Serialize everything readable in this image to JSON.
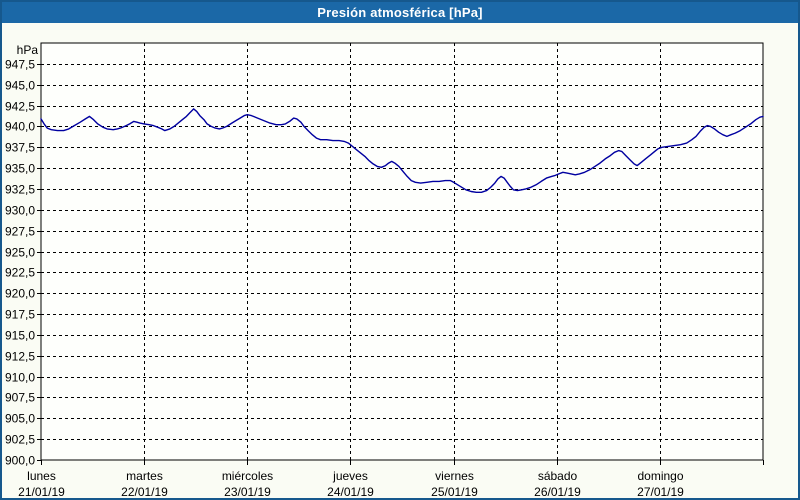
{
  "window": {
    "title": "Presión atmosférica [hPa]"
  },
  "chart_data": {
    "type": "line",
    "title": "Presión atmosférica [hPa]",
    "ylabel": "hPa",
    "xlabel": "",
    "y_min": 900,
    "y_max": 950,
    "y_tick_step": 2.5,
    "y_tick_labels": [
      "947,5",
      "945,0",
      "942,5",
      "940,0",
      "937,5",
      "935,0",
      "932,5",
      "930,0",
      "927,5",
      "925,0",
      "922,5",
      "920,0",
      "917,5",
      "915,0",
      "912,5",
      "910,0",
      "907,5",
      "905,0",
      "902,5",
      "900,0"
    ],
    "x_days": [
      {
        "name": "lunes",
        "date": "21/01/19"
      },
      {
        "name": "martes",
        "date": "22/01/19"
      },
      {
        "name": "miércoles",
        "date": "23/01/19"
      },
      {
        "name": "jueves",
        "date": "24/01/19"
      },
      {
        "name": "viernes",
        "date": "25/01/19"
      },
      {
        "name": "sábado",
        "date": "26/01/19"
      },
      {
        "name": "domingo",
        "date": "27/01/19"
      }
    ],
    "x_min_day": 0,
    "x_max_day": 7,
    "grid": "dashed",
    "legend": "none",
    "series": [
      {
        "name": "Presión atmosférica",
        "units": "hPa",
        "points": [
          [
            0.0,
            940.9
          ],
          [
            0.03,
            940.3
          ],
          [
            0.06,
            939.8
          ],
          [
            0.1,
            939.6
          ],
          [
            0.16,
            939.5
          ],
          [
            0.22,
            939.5
          ],
          [
            0.27,
            939.7
          ],
          [
            0.31,
            940.0
          ],
          [
            0.38,
            940.5
          ],
          [
            0.43,
            940.9
          ],
          [
            0.47,
            941.2
          ],
          [
            0.51,
            940.8
          ],
          [
            0.55,
            940.3
          ],
          [
            0.6,
            939.9
          ],
          [
            0.64,
            939.7
          ],
          [
            0.7,
            939.6
          ],
          [
            0.74,
            939.7
          ],
          [
            0.77,
            939.8
          ],
          [
            0.81,
            940.0
          ],
          [
            0.86,
            940.3
          ],
          [
            0.9,
            940.6
          ],
          [
            0.93,
            940.5
          ],
          [
            0.96,
            940.4
          ],
          [
            1.0,
            940.3
          ],
          [
            1.05,
            940.2
          ],
          [
            1.09,
            940.1
          ],
          [
            1.13,
            939.9
          ],
          [
            1.17,
            939.7
          ],
          [
            1.2,
            939.5
          ],
          [
            1.25,
            939.7
          ],
          [
            1.29,
            940.0
          ],
          [
            1.33,
            940.4
          ],
          [
            1.37,
            940.8
          ],
          [
            1.41,
            941.2
          ],
          [
            1.44,
            941.6
          ],
          [
            1.48,
            942.1
          ],
          [
            1.51,
            941.8
          ],
          [
            1.54,
            941.3
          ],
          [
            1.58,
            940.8
          ],
          [
            1.61,
            940.3
          ],
          [
            1.65,
            940.0
          ],
          [
            1.69,
            939.8
          ],
          [
            1.73,
            939.7
          ],
          [
            1.76,
            939.8
          ],
          [
            1.8,
            940.0
          ],
          [
            1.85,
            940.4
          ],
          [
            1.89,
            940.7
          ],
          [
            1.93,
            941.0
          ],
          [
            1.97,
            941.3
          ],
          [
            2.0,
            941.4
          ],
          [
            2.04,
            941.3
          ],
          [
            2.1,
            941.0
          ],
          [
            2.16,
            940.7
          ],
          [
            2.22,
            940.4
          ],
          [
            2.28,
            940.2
          ],
          [
            2.33,
            940.2
          ],
          [
            2.37,
            940.3
          ],
          [
            2.41,
            940.6
          ],
          [
            2.45,
            941.0
          ],
          [
            2.48,
            940.9
          ],
          [
            2.52,
            940.5
          ],
          [
            2.55,
            940.0
          ],
          [
            2.59,
            939.5
          ],
          [
            2.63,
            939.0
          ],
          [
            2.67,
            938.6
          ],
          [
            2.71,
            938.4
          ],
          [
            2.77,
            938.4
          ],
          [
            2.83,
            938.3
          ],
          [
            2.89,
            938.3
          ],
          [
            2.94,
            938.2
          ],
          [
            2.98,
            938.0
          ],
          [
            3.02,
            937.6
          ],
          [
            3.06,
            937.2
          ],
          [
            3.1,
            936.8
          ],
          [
            3.14,
            936.4
          ],
          [
            3.18,
            935.9
          ],
          [
            3.22,
            935.5
          ],
          [
            3.26,
            935.2
          ],
          [
            3.3,
            935.1
          ],
          [
            3.34,
            935.3
          ],
          [
            3.37,
            935.6
          ],
          [
            3.4,
            935.8
          ],
          [
            3.43,
            935.6
          ],
          [
            3.47,
            935.2
          ],
          [
            3.51,
            934.6
          ],
          [
            3.55,
            934.0
          ],
          [
            3.59,
            933.5
          ],
          [
            3.63,
            933.3
          ],
          [
            3.68,
            933.2
          ],
          [
            3.74,
            933.3
          ],
          [
            3.8,
            933.4
          ],
          [
            3.86,
            933.4
          ],
          [
            3.92,
            933.5
          ],
          [
            3.97,
            933.5
          ],
          [
            4.0,
            933.3
          ],
          [
            4.04,
            933.0
          ],
          [
            4.08,
            932.7
          ],
          [
            4.12,
            932.4
          ],
          [
            4.17,
            932.2
          ],
          [
            4.22,
            932.1
          ],
          [
            4.27,
            932.1
          ],
          [
            4.32,
            932.3
          ],
          [
            4.36,
            932.7
          ],
          [
            4.4,
            933.2
          ],
          [
            4.43,
            933.7
          ],
          [
            4.46,
            934.0
          ],
          [
            4.49,
            933.8
          ],
          [
            4.52,
            933.3
          ],
          [
            4.55,
            932.8
          ],
          [
            4.58,
            932.4
          ],
          [
            4.62,
            932.3
          ],
          [
            4.66,
            932.4
          ],
          [
            4.7,
            932.5
          ],
          [
            4.75,
            932.7
          ],
          [
            4.8,
            933.0
          ],
          [
            4.85,
            933.4
          ],
          [
            4.9,
            933.8
          ],
          [
            4.95,
            934.0
          ],
          [
            4.98,
            934.1
          ],
          [
            5.02,
            934.3
          ],
          [
            5.06,
            934.5
          ],
          [
            5.1,
            934.4
          ],
          [
            5.14,
            934.3
          ],
          [
            5.18,
            934.2
          ],
          [
            5.22,
            934.3
          ],
          [
            5.27,
            934.5
          ],
          [
            5.32,
            934.8
          ],
          [
            5.37,
            935.2
          ],
          [
            5.42,
            935.6
          ],
          [
            5.47,
            936.1
          ],
          [
            5.52,
            936.5
          ],
          [
            5.56,
            936.9
          ],
          [
            5.6,
            937.1
          ],
          [
            5.63,
            937.0
          ],
          [
            5.67,
            936.5
          ],
          [
            5.71,
            936.0
          ],
          [
            5.75,
            935.5
          ],
          [
            5.78,
            935.3
          ],
          [
            5.82,
            935.7
          ],
          [
            5.86,
            936.1
          ],
          [
            5.91,
            936.6
          ],
          [
            5.95,
            937.0
          ],
          [
            5.98,
            937.3
          ],
          [
            6.02,
            937.5
          ],
          [
            6.08,
            937.6
          ],
          [
            6.14,
            937.7
          ],
          [
            6.2,
            937.8
          ],
          [
            6.26,
            938.0
          ],
          [
            6.31,
            938.4
          ],
          [
            6.35,
            938.8
          ],
          [
            6.39,
            939.4
          ],
          [
            6.43,
            939.9
          ],
          [
            6.46,
            940.1
          ],
          [
            6.49,
            940.0
          ],
          [
            6.53,
            939.7
          ],
          [
            6.57,
            939.3
          ],
          [
            6.61,
            939.0
          ],
          [
            6.65,
            938.8
          ],
          [
            6.69,
            939.0
          ],
          [
            6.73,
            939.2
          ],
          [
            6.78,
            939.5
          ],
          [
            6.83,
            939.9
          ],
          [
            6.88,
            940.3
          ],
          [
            6.93,
            940.8
          ],
          [
            6.97,
            941.1
          ],
          [
            7.0,
            941.2
          ]
        ]
      }
    ],
    "colors": {
      "titlebar": "#1B68A7",
      "window_border": "#16588D",
      "background": "#FAFCF4",
      "plot_background": "#FEFFFC",
      "grid": "#000000",
      "axis_text": "#000000",
      "title_text": "#FFFFFF",
      "line": "#0000A0"
    }
  }
}
